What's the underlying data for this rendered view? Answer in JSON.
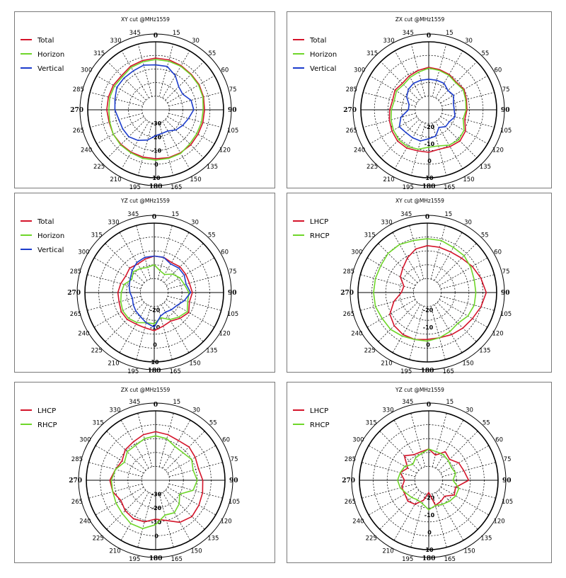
{
  "chart_data": [
    {
      "type": "polar-line",
      "title": "XY cut @MHz1559",
      "angle_ticks": [
        0,
        15,
        30,
        55,
        60,
        75,
        90,
        105,
        120,
        135,
        150,
        165,
        180,
        195,
        210,
        225,
        240,
        265,
        270,
        285,
        300,
        315,
        330,
        345
      ],
      "radial_ticks": [
        -30,
        -20,
        -10,
        0,
        10
      ],
      "rlim": [
        -40,
        10
      ],
      "grid": true,
      "legend": "top-left",
      "series": [
        {
          "name": "Total",
          "color": "#d4142a",
          "angles": [
            0,
            15,
            30,
            45,
            60,
            75,
            90,
            105,
            120,
            135,
            150,
            165,
            180,
            195,
            210,
            225,
            240,
            255,
            270,
            285,
            300,
            315,
            330,
            345
          ],
          "values": [
            -2,
            -2,
            -2.5,
            -3,
            -3,
            -3.5,
            -4,
            -4,
            -4,
            -3.5,
            -3.5,
            -3.5,
            -4,
            -4,
            -4,
            -4,
            -4,
            -4.5,
            -4,
            -4,
            -4,
            -4.5,
            -3,
            -2.5
          ]
        },
        {
          "name": "Horizon",
          "color": "#6fd62a",
          "angles": [
            0,
            15,
            30,
            45,
            60,
            75,
            90,
            105,
            120,
            135,
            150,
            165,
            180,
            195,
            210,
            225,
            240,
            255,
            270,
            285,
            300,
            315,
            330,
            345
          ],
          "values": [
            -3,
            -3,
            -3,
            -3.5,
            -3.5,
            -4,
            -5,
            -5,
            -5,
            -4.5,
            -3,
            -3,
            -3,
            -3,
            -3.5,
            -3.5,
            -4,
            -5,
            -5.5,
            -5,
            -5,
            -5.5,
            -4,
            -3.5
          ]
        },
        {
          "name": "Vertical",
          "color": "#1c3ccc",
          "angles": [
            0,
            15,
            30,
            45,
            60,
            75,
            90,
            105,
            120,
            135,
            150,
            165,
            180,
            195,
            210,
            225,
            240,
            255,
            270,
            285,
            300,
            315,
            330,
            345
          ],
          "values": [
            -7,
            -7,
            -11,
            -16,
            -17,
            -13,
            -12,
            -15,
            -17,
            -19,
            -22,
            -22,
            -21,
            -17,
            -14,
            -12,
            -12,
            -12,
            -10,
            -9,
            -7,
            -7,
            -7,
            -6
          ]
        }
      ]
    },
    {
      "type": "polar-line",
      "title": "ZX cut @MHz1559",
      "angle_ticks": [
        0,
        15,
        30,
        55,
        60,
        75,
        90,
        105,
        120,
        135,
        150,
        165,
        180,
        195,
        210,
        225,
        240,
        265,
        270,
        285,
        300,
        315,
        330,
        345
      ],
      "radial_ticks": [
        -20,
        -10,
        0,
        10
      ],
      "rlim": [
        -30,
        10
      ],
      "grid": true,
      "legend": "top-left",
      "series": [
        {
          "name": "Total",
          "color": "#d4142a",
          "angles": [
            0,
            15,
            30,
            45,
            60,
            75,
            90,
            105,
            120,
            135,
            150,
            165,
            180,
            195,
            210,
            225,
            240,
            255,
            270,
            285,
            300,
            315,
            330,
            345
          ],
          "values": [
            -5,
            -5.5,
            -6,
            -7,
            -6,
            -7,
            -7.5,
            -8,
            -5,
            -4,
            -5,
            -6,
            -5,
            -5,
            -4,
            -4,
            -5,
            -6,
            -7,
            -8,
            -7,
            -8,
            -7,
            -6
          ]
        },
        {
          "name": "Horizon",
          "color": "#6fd62a",
          "angles": [
            0,
            15,
            30,
            45,
            60,
            75,
            90,
            105,
            120,
            135,
            150,
            165,
            180,
            195,
            210,
            225,
            240,
            255,
            270,
            285,
            300,
            315,
            330,
            345
          ],
          "values": [
            -5.5,
            -6,
            -6.5,
            -7.5,
            -6.5,
            -7.5,
            -8,
            -9,
            -6,
            -5,
            -6,
            -8,
            -8,
            -6,
            -5,
            -5,
            -6,
            -7,
            -8,
            -9,
            -8,
            -9,
            -8,
            -7
          ]
        },
        {
          "name": "Vertical",
          "color": "#1c3ccc",
          "angles": [
            0,
            15,
            30,
            45,
            60,
            75,
            90,
            105,
            120,
            135,
            150,
            165,
            180,
            195,
            210,
            225,
            240,
            255,
            270,
            285,
            300,
            315,
            330,
            345
          ],
          "values": [
            -12,
            -12,
            -12,
            -14,
            -13,
            -15,
            -15,
            -14,
            -16,
            -16,
            -18,
            -14,
            -13,
            -11,
            -11,
            -11,
            -10,
            -13,
            -18,
            -18,
            -15,
            -13,
            -12,
            -12
          ]
        }
      ]
    },
    {
      "type": "polar-line",
      "title": "YZ cut @MHz1559",
      "angle_ticks": [
        0,
        15,
        30,
        55,
        60,
        75,
        90,
        105,
        120,
        135,
        150,
        165,
        180,
        195,
        210,
        225,
        240,
        265,
        270,
        285,
        300,
        315,
        330,
        345
      ],
      "radial_ticks": [
        -20,
        -10,
        0,
        10
      ],
      "rlim": [
        -30,
        10
      ],
      "grid": true,
      "legend": "top-left",
      "series": [
        {
          "name": "Total",
          "color": "#d4142a",
          "angles": [
            0,
            15,
            30,
            45,
            60,
            75,
            90,
            105,
            120,
            135,
            150,
            165,
            180,
            195,
            210,
            225,
            240,
            255,
            270,
            285,
            300,
            315,
            330,
            345
          ],
          "values": [
            -9,
            -9,
            -10,
            -9,
            -9,
            -9,
            -8,
            -9,
            -7,
            -9,
            -11,
            -10,
            -8,
            -9,
            -9,
            -8,
            -8,
            -9,
            -9,
            -10,
            -11,
            -10,
            -11,
            -10
          ]
        },
        {
          "name": "Horizon",
          "color": "#6fd62a",
          "angles": [
            0,
            15,
            30,
            45,
            60,
            75,
            90,
            105,
            120,
            135,
            150,
            165,
            180,
            195,
            210,
            225,
            240,
            255,
            270,
            285,
            300,
            315,
            330,
            345
          ],
          "values": [
            -14,
            -17,
            -18,
            -15,
            -13,
            -12,
            -10,
            -10,
            -8,
            -10,
            -12,
            -15,
            -12,
            -12,
            -10,
            -9,
            -9,
            -10,
            -11,
            -12,
            -15,
            -13,
            -14,
            -15
          ]
        },
        {
          "name": "Vertical",
          "color": "#1c3ccc",
          "angles": [
            0,
            15,
            30,
            45,
            60,
            75,
            90,
            105,
            120,
            135,
            150,
            165,
            180,
            195,
            210,
            225,
            240,
            255,
            270,
            285,
            300,
            315,
            330,
            345
          ],
          "values": [
            -9,
            -9,
            -11,
            -10,
            -10,
            -11,
            -9,
            -12,
            -15,
            -16,
            -17,
            -16,
            -10,
            -12,
            -14,
            -15,
            -16,
            -17,
            -16,
            -15,
            -14,
            -12,
            -10,
            -9
          ]
        }
      ]
    },
    {
      "type": "polar-line",
      "title": "XY cut @MHz1559",
      "angle_ticks": [
        0,
        15,
        30,
        55,
        60,
        75,
        90,
        105,
        120,
        135,
        150,
        165,
        180,
        195,
        210,
        225,
        240,
        265,
        270,
        285,
        300,
        315,
        330,
        345
      ],
      "radial_ticks": [
        -20,
        -10,
        0
      ],
      "rlim": [
        -30,
        10
      ],
      "grid": true,
      "legend": "top-left",
      "series": [
        {
          "name": "LHCP",
          "color": "#d4142a",
          "angles": [
            0,
            15,
            30,
            45,
            60,
            75,
            90,
            105,
            120,
            135,
            150,
            165,
            180,
            195,
            210,
            225,
            240,
            255,
            270,
            285,
            300,
            315,
            330,
            345
          ],
          "values": [
            -3,
            -3,
            -3,
            -2,
            0,
            2,
            4,
            2,
            0,
            -1,
            -2,
            -3,
            -3,
            -2,
            -2,
            -3,
            -5,
            -10,
            -15,
            -16,
            -12,
            -10,
            -7,
            -4
          ]
        },
        {
          "name": "RHCP",
          "color": "#6fd62a",
          "angles": [
            0,
            15,
            30,
            45,
            60,
            75,
            90,
            105,
            120,
            135,
            150,
            165,
            180,
            195,
            210,
            225,
            240,
            255,
            270,
            285,
            300,
            315,
            330,
            345
          ],
          "values": [
            1,
            1,
            0,
            0,
            -1,
            -2,
            -2,
            -2,
            -3,
            -5,
            -4,
            -3,
            -2,
            -2,
            -1,
            0,
            0,
            1,
            1,
            1,
            1,
            2,
            2,
            1
          ]
        }
      ]
    },
    {
      "type": "polar-line",
      "title": "ZX cut @MHz1559",
      "angle_ticks": [
        0,
        15,
        30,
        55,
        60,
        75,
        90,
        105,
        120,
        135,
        150,
        165,
        180,
        195,
        210,
        225,
        240,
        265,
        270,
        285,
        300,
        315,
        330,
        345
      ],
      "radial_ticks": [
        -30,
        -20,
        -10,
        0
      ],
      "rlim": [
        -40,
        10
      ],
      "grid": true,
      "legend": "top-left",
      "series": [
        {
          "name": "LHCP",
          "color": "#d4142a",
          "angles": [
            0,
            15,
            30,
            45,
            60,
            75,
            90,
            105,
            120,
            135,
            150,
            165,
            180,
            195,
            210,
            225,
            240,
            255,
            270,
            285,
            300,
            315,
            330,
            345
          ],
          "values": [
            -5,
            -6,
            -7,
            -6,
            -7,
            -8,
            -6,
            -5,
            -4,
            -3,
            -5,
            -10,
            -12,
            -9,
            -8,
            -9,
            -11,
            -8,
            -7,
            -10,
            -12,
            -9,
            -8,
            -6
          ]
        },
        {
          "name": "RHCP",
          "color": "#6fd62a",
          "angles": [
            0,
            15,
            30,
            45,
            60,
            75,
            90,
            105,
            120,
            135,
            150,
            165,
            180,
            195,
            210,
            225,
            240,
            255,
            270,
            285,
            300,
            315,
            330,
            345
          ],
          "values": [
            -8,
            -9,
            -12,
            -12,
            -10,
            -12,
            -10,
            -12,
            -20,
            -16,
            -13,
            -14,
            -8,
            -4,
            -4,
            -6,
            -7,
            -8,
            -8,
            -10,
            -14,
            -11,
            -11,
            -9
          ]
        }
      ]
    },
    {
      "type": "polar-line",
      "title": "YZ cut @MHz1559",
      "angle_ticks": [
        0,
        15,
        30,
        55,
        60,
        75,
        90,
        105,
        120,
        135,
        150,
        165,
        180,
        195,
        210,
        225,
        240,
        265,
        270,
        285,
        300,
        315,
        330,
        345
      ],
      "radial_ticks": [
        -20,
        -10,
        0,
        10
      ],
      "rlim": [
        -30,
        10
      ],
      "grid": true,
      "legend": "top-left",
      "series": [
        {
          "name": "LHCP",
          "color": "#d4142a",
          "angles": [
            0,
            15,
            30,
            45,
            60,
            75,
            90,
            105,
            120,
            135,
            150,
            165,
            180,
            195,
            210,
            225,
            240,
            255,
            270,
            285,
            300,
            315,
            330,
            345
          ],
          "values": [
            -12,
            -15,
            -11,
            -13,
            -10,
            -9,
            -7,
            -14,
            -13,
            -17,
            -16,
            -15,
            -23,
            -18,
            -14,
            -13,
            -14,
            -14,
            -16,
            -13,
            -16,
            -10,
            -13,
            -13
          ]
        },
        {
          "name": "RHCP",
          "color": "#6fd62a",
          "angles": [
            0,
            15,
            30,
            45,
            60,
            75,
            90,
            105,
            120,
            135,
            150,
            165,
            180,
            195,
            210,
            225,
            240,
            255,
            270,
            285,
            300,
            315,
            330,
            345
          ],
          "values": [
            -12,
            -13,
            -13,
            -14,
            -15,
            -14,
            -16,
            -12,
            -12,
            -13,
            -14,
            -15,
            -13,
            -16,
            -17,
            -16,
            -15,
            -13,
            -12,
            -13,
            -14,
            -17,
            -15,
            -14
          ]
        }
      ]
    }
  ]
}
